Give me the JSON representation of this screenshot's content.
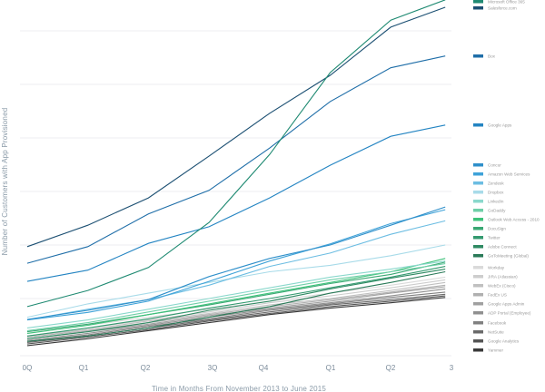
{
  "chart_data": {
    "type": "line",
    "title": "",
    "xlabel": "Time in Months From November 2013 to June 2015",
    "ylabel": "Number of Customers with App Provisioned",
    "x_tick_labels": [
      "0Q",
      "Q1",
      "Q2",
      "3Q",
      "Q4",
      "Q1",
      "Q2",
      "3"
    ],
    "x": [
      0,
      1,
      2,
      3,
      4,
      5,
      6,
      6.9
    ],
    "xlim": [
      0,
      7
    ],
    "ylim": [
      0,
      6.5
    ],
    "grid": true,
    "legend_placement": "right",
    "series": [
      {
        "name": "Microsoft Office 365",
        "color": "#1f8a72",
        "values": [
          0.85,
          1.15,
          1.58,
          2.42,
          3.69,
          5.22,
          6.2,
          6.58
        ]
      },
      {
        "name": "Salesforce.com",
        "color": "#1b4f72",
        "values": [
          1.97,
          2.37,
          2.88,
          3.66,
          4.46,
          5.17,
          6.07,
          6.44
        ]
      },
      {
        "name": "Box",
        "color": "#1f6ea8",
        "values": [
          1.66,
          1.97,
          2.58,
          3.02,
          3.81,
          4.68,
          5.31,
          5.53
        ]
      },
      {
        "name": "Google Apps",
        "color": "#2384c2",
        "values": [
          1.32,
          1.53,
          2.03,
          2.34,
          2.88,
          3.49,
          4.03,
          4.24
        ]
      },
      {
        "name": "Concur",
        "color": "#2e8fca",
        "values": [
          0.61,
          0.78,
          0.98,
          1.41,
          1.75,
          2.0,
          2.37,
          2.71
        ]
      },
      {
        "name": "Amazon Web Services",
        "color": "#3ea2d8",
        "values": [
          0.6,
          0.74,
          0.95,
          1.32,
          1.7,
          2.02,
          2.4,
          2.66
        ]
      },
      {
        "name": "Zendesk",
        "color": "#6cbde2",
        "values": [
          0.6,
          0.8,
          0.98,
          1.25,
          1.6,
          1.85,
          2.2,
          2.45
        ]
      },
      {
        "name": "Dropbox",
        "color": "#a8dbe9",
        "values": [
          0.65,
          0.9,
          1.1,
          1.3,
          1.5,
          1.62,
          1.8,
          2.0
        ]
      },
      {
        "name": "LinkedIn",
        "color": "#8ad8cc",
        "values": [
          0.45,
          0.6,
          0.8,
          1.0,
          1.2,
          1.4,
          1.55,
          1.7
        ]
      },
      {
        "name": "GoDaddy",
        "color": "#6fcfa8",
        "values": [
          0.4,
          0.55,
          0.75,
          0.95,
          1.15,
          1.35,
          1.5,
          1.65
        ]
      },
      {
        "name": "Outlook Web Access - 2010",
        "color": "#3fc27b",
        "values": [
          0.35,
          0.5,
          0.7,
          0.9,
          1.1,
          1.3,
          1.5,
          1.75
        ]
      },
      {
        "name": "DocuSign",
        "color": "#3aa873",
        "values": [
          0.38,
          0.52,
          0.7,
          0.88,
          1.08,
          1.28,
          1.45,
          1.68
        ]
      },
      {
        "name": "Twitter",
        "color": "#349a70",
        "values": [
          0.3,
          0.45,
          0.62,
          0.82,
          1.0,
          1.2,
          1.4,
          1.6
        ]
      },
      {
        "name": "Adobe Connect",
        "color": "#2f8a63",
        "values": [
          0.25,
          0.38,
          0.55,
          0.78,
          0.95,
          1.18,
          1.38,
          1.55
        ]
      },
      {
        "name": "GoToMeeting (Global)",
        "color": "#2a7a58",
        "values": [
          0.2,
          0.3,
          0.45,
          0.65,
          0.85,
          1.1,
          1.3,
          1.5
        ]
      },
      {
        "name": "Workday",
        "color": "#dadada",
        "values": [
          0.35,
          0.5,
          0.65,
          0.8,
          0.95,
          1.1,
          1.25,
          1.4
        ]
      },
      {
        "name": "JIRA (Atlassian)",
        "color": "#cdcdcd",
        "values": [
          0.3,
          0.45,
          0.6,
          0.75,
          0.92,
          1.05,
          1.2,
          1.35
        ]
      },
      {
        "name": "WebEx (Cisco)",
        "color": "#c0c0c0",
        "values": [
          0.3,
          0.42,
          0.58,
          0.72,
          0.88,
          1.0,
          1.15,
          1.3
        ]
      },
      {
        "name": "FedEx US",
        "color": "#b0b0b0",
        "values": [
          0.28,
          0.4,
          0.55,
          0.7,
          0.85,
          0.98,
          1.12,
          1.25
        ]
      },
      {
        "name": "Google Apps Admin",
        "color": "#a0a0a0",
        "values": [
          0.25,
          0.38,
          0.52,
          0.68,
          0.82,
          0.95,
          1.1,
          1.22
        ]
      },
      {
        "name": "ADP Portal (Employee)",
        "color": "#909090",
        "values": [
          0.22,
          0.35,
          0.5,
          0.65,
          0.8,
          0.92,
          1.05,
          1.18
        ]
      },
      {
        "name": "Facebook",
        "color": "#808080",
        "values": [
          0.2,
          0.32,
          0.48,
          0.62,
          0.78,
          0.9,
          1.02,
          1.12
        ]
      },
      {
        "name": "NetSuite",
        "color": "#6a6a6a",
        "values": [
          0.18,
          0.3,
          0.45,
          0.6,
          0.75,
          0.88,
          0.98,
          1.08
        ]
      },
      {
        "name": "Google Analytics",
        "color": "#555555",
        "values": [
          0.15,
          0.28,
          0.42,
          0.58,
          0.72,
          0.85,
          0.95,
          1.05
        ]
      },
      {
        "name": "Yammer",
        "color": "#3a3a3a",
        "values": [
          0.12,
          0.25,
          0.4,
          0.55,
          0.7,
          0.82,
          0.92,
          1.02
        ]
      }
    ]
  }
}
